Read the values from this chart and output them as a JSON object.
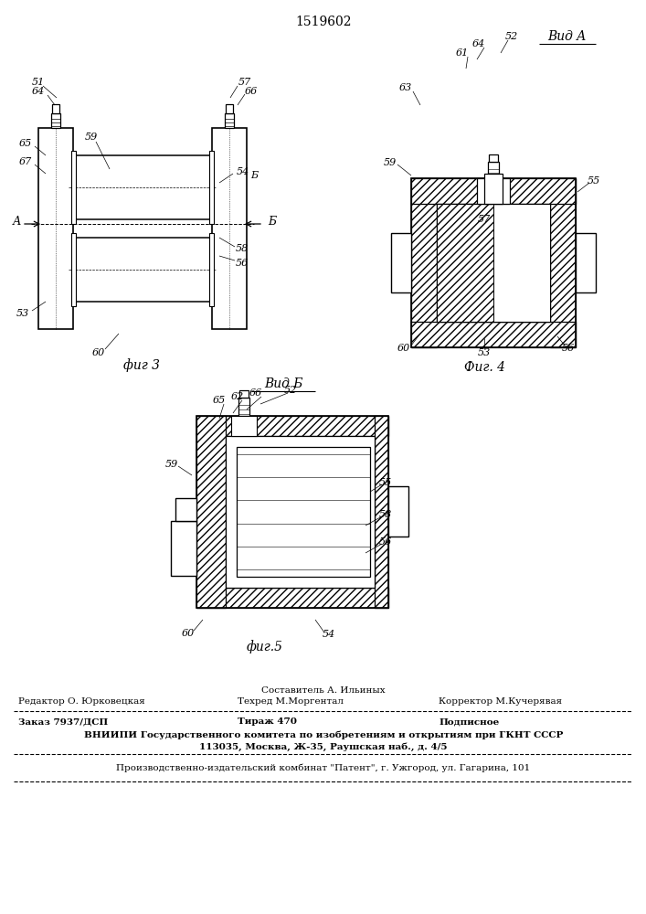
{
  "title": "1519602",
  "bg_color": "#ffffff",
  "line_color": "#000000",
  "fig3_label": "фиг 3",
  "fig4_label": "Фиг. 4",
  "fig5_label": "фиг.5",
  "vidA_label": "Вид A",
  "vidB_label": "Вид Б",
  "footer_sestavitel": "Составитель А. Ильиных",
  "footer_redaktor": "Редактор О. Юрковецкая",
  "footer_tehred": "Техред М.Моргентал",
  "footer_korrektor": "Корректор М.Кучерявая",
  "footer_zakaz": "Заказ 7937/ДСП",
  "footer_tirazh": "Тираж 470",
  "footer_podpisnoe": "Подписное",
  "footer_vniipи": "ВНИИПИ Государственного комитета по изобретениям и открытиям при ГКНТ СССР",
  "footer_addr": "113035, Москва, Ж-35, Раушская наб., д. 4/5",
  "footer_patent": "Производственно-издательский комбинат \"Патент\", г. Ужгород, ул. Гагарина, 101"
}
